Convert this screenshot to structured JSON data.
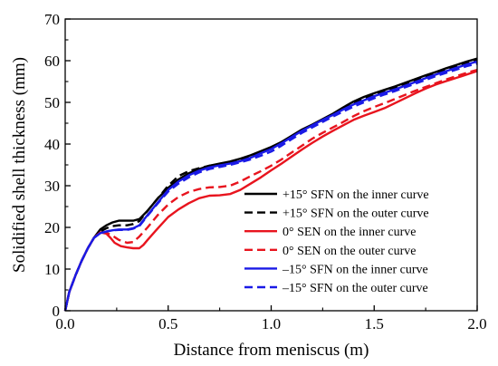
{
  "chart_data": {
    "type": "line",
    "title": "",
    "xlabel": "Distance from meniscus (m)",
    "ylabel": "Solidified shell thickness (mm)",
    "xlim": [
      0,
      2.0
    ],
    "ylim": [
      0,
      70
    ],
    "xticks": [
      "0.0",
      "0.5",
      "1.0",
      "1.5",
      "2.0"
    ],
    "yticks": [
      "0",
      "10",
      "20",
      "30",
      "40",
      "50",
      "60",
      "70"
    ],
    "grid": false,
    "legend_position": "lower-right",
    "series": [
      {
        "name": "+15° SFN on the inner curve",
        "color": "#000000",
        "dash": "solid",
        "x": [
          0,
          0.02,
          0.05,
          0.08,
          0.11,
          0.14,
          0.17,
          0.2,
          0.23,
          0.26,
          0.3,
          0.33,
          0.36,
          0.4,
          0.45,
          0.5,
          0.55,
          0.6,
          0.65,
          0.7,
          0.75,
          0.8,
          0.85,
          0.9,
          0.95,
          1.0,
          1.05,
          1.1,
          1.15,
          1.2,
          1.25,
          1.3,
          1.35,
          1.4,
          1.45,
          1.5,
          1.55,
          1.6,
          1.65,
          1.7,
          1.75,
          1.8,
          1.85,
          1.9,
          1.95,
          2.0
        ],
        "y": [
          0,
          4.5,
          8.5,
          12.0,
          15.0,
          17.5,
          19.5,
          20.5,
          21.2,
          21.6,
          21.6,
          21.6,
          22.0,
          24.0,
          27.0,
          29.5,
          31.5,
          33.0,
          34.0,
          34.8,
          35.3,
          35.8,
          36.5,
          37.3,
          38.3,
          39.3,
          40.5,
          42.0,
          43.5,
          44.7,
          46.0,
          47.3,
          48.8,
          50.2,
          51.3,
          52.2,
          53.0,
          53.8,
          54.7,
          55.6,
          56.5,
          57.3,
          58.2,
          59.0,
          59.8,
          60.5
        ]
      },
      {
        "name": "+15° SFN on the outer curve",
        "color": "#000000",
        "dash": "dashed",
        "x": [
          0,
          0.02,
          0.05,
          0.08,
          0.11,
          0.14,
          0.17,
          0.2,
          0.23,
          0.26,
          0.3,
          0.33,
          0.36,
          0.4,
          0.45,
          0.5,
          0.55,
          0.6,
          0.65,
          0.7,
          0.75,
          0.8,
          0.85,
          0.9,
          0.95,
          1.0,
          1.05,
          1.1,
          1.15,
          1.2,
          1.25,
          1.3,
          1.35,
          1.4,
          1.45,
          1.5,
          1.55,
          1.6,
          1.65,
          1.7,
          1.75,
          1.8,
          1.85,
          1.9,
          1.95,
          2.0
        ],
        "y": [
          0,
          4.5,
          8.5,
          12.0,
          15.0,
          17.5,
          19.0,
          19.8,
          20.3,
          20.5,
          20.5,
          20.8,
          21.5,
          24.0,
          27.0,
          30.0,
          32.3,
          33.5,
          34.2,
          34.8,
          35.2,
          35.6,
          36.2,
          37.0,
          38.0,
          39.0,
          40.2,
          41.8,
          43.2,
          44.5,
          45.7,
          47.0,
          48.5,
          49.8,
          50.8,
          51.7,
          52.5,
          53.3,
          54.3,
          55.2,
          56.1,
          57.0,
          57.9,
          58.7,
          59.5,
          60.3
        ]
      },
      {
        "name": "0° SEN on the inner curve",
        "color": "#e8141e",
        "dash": "solid",
        "x": [
          0,
          0.02,
          0.05,
          0.08,
          0.11,
          0.14,
          0.17,
          0.2,
          0.22,
          0.24,
          0.27,
          0.3,
          0.33,
          0.36,
          0.38,
          0.4,
          0.45,
          0.5,
          0.55,
          0.6,
          0.65,
          0.7,
          0.75,
          0.8,
          0.85,
          0.9,
          0.95,
          1.0,
          1.05,
          1.1,
          1.15,
          1.2,
          1.25,
          1.3,
          1.35,
          1.4,
          1.45,
          1.5,
          1.55,
          1.6,
          1.65,
          1.7,
          1.75,
          1.8,
          1.85,
          1.9,
          1.95,
          2.0
        ],
        "y": [
          0,
          4.5,
          8.5,
          12.0,
          15.0,
          17.5,
          18.8,
          18.5,
          17.5,
          16.3,
          15.5,
          15.2,
          15.0,
          15.0,
          15.8,
          17.0,
          19.8,
          22.5,
          24.3,
          25.8,
          27.0,
          27.6,
          27.7,
          28.0,
          29.0,
          30.5,
          32.0,
          33.7,
          35.3,
          37.0,
          38.7,
          40.3,
          41.8,
          43.2,
          44.5,
          45.8,
          46.8,
          47.7,
          48.6,
          49.8,
          51.0,
          52.2,
          53.3,
          54.3,
          55.1,
          55.9,
          56.7,
          57.5
        ]
      },
      {
        "name": "0° SEN on the outer curve",
        "color": "#e8141e",
        "dash": "dashed",
        "x": [
          0,
          0.02,
          0.05,
          0.08,
          0.11,
          0.14,
          0.17,
          0.2,
          0.23,
          0.26,
          0.3,
          0.33,
          0.36,
          0.4,
          0.45,
          0.5,
          0.55,
          0.6,
          0.65,
          0.7,
          0.75,
          0.8,
          0.85,
          0.9,
          0.95,
          1.0,
          1.05,
          1.1,
          1.15,
          1.2,
          1.25,
          1.3,
          1.35,
          1.4,
          1.45,
          1.5,
          1.55,
          1.6,
          1.65,
          1.7,
          1.75,
          1.8,
          1.85,
          1.9,
          1.95,
          2.0
        ],
        "y": [
          0,
          4.5,
          8.5,
          12.0,
          15.0,
          17.5,
          18.8,
          18.7,
          18.0,
          17.0,
          16.3,
          16.5,
          17.8,
          20.0,
          23.0,
          25.5,
          27.3,
          28.5,
          29.2,
          29.6,
          29.7,
          30.0,
          31.0,
          32.3,
          33.5,
          34.8,
          36.3,
          38.0,
          39.6,
          41.3,
          42.7,
          44.0,
          45.3,
          46.7,
          47.9,
          48.9,
          49.8,
          50.8,
          51.8,
          52.8,
          53.7,
          54.6,
          55.5,
          56.3,
          57.1,
          57.8
        ]
      },
      {
        "name": "–15° SFN on the inner curve",
        "color": "#1a1ae6",
        "dash": "solid",
        "x": [
          0,
          0.02,
          0.05,
          0.08,
          0.11,
          0.14,
          0.17,
          0.2,
          0.23,
          0.26,
          0.3,
          0.33,
          0.36,
          0.4,
          0.45,
          0.5,
          0.55,
          0.6,
          0.65,
          0.7,
          0.75,
          0.8,
          0.85,
          0.9,
          0.95,
          1.0,
          1.05,
          1.1,
          1.15,
          1.2,
          1.25,
          1.3,
          1.35,
          1.4,
          1.45,
          1.5,
          1.55,
          1.6,
          1.65,
          1.7,
          1.75,
          1.8,
          1.85,
          1.9,
          1.95,
          2.0
        ],
        "y": [
          0,
          4.5,
          8.5,
          12.0,
          15.0,
          17.5,
          18.6,
          19.0,
          19.3,
          19.5,
          19.5,
          19.8,
          20.5,
          23.0,
          26.0,
          29.0,
          31.0,
          32.5,
          33.6,
          34.4,
          34.9,
          35.3,
          35.9,
          36.7,
          37.8,
          38.8,
          40.2,
          41.7,
          43.2,
          44.5,
          45.8,
          47.0,
          48.3,
          49.5,
          50.5,
          51.5,
          52.3,
          53.1,
          54.0,
          54.9,
          55.8,
          56.7,
          57.5,
          58.3,
          59.1,
          59.8
        ]
      },
      {
        "name": "–15° SFN on the outer curve",
        "color": "#1a1ae6",
        "dash": "dashed",
        "x": [
          0,
          0.02,
          0.05,
          0.08,
          0.11,
          0.14,
          0.17,
          0.2,
          0.23,
          0.26,
          0.3,
          0.33,
          0.36,
          0.4,
          0.45,
          0.5,
          0.55,
          0.6,
          0.65,
          0.7,
          0.75,
          0.8,
          0.85,
          0.9,
          0.95,
          1.0,
          1.05,
          1.1,
          1.15,
          1.2,
          1.25,
          1.3,
          1.35,
          1.4,
          1.45,
          1.5,
          1.55,
          1.6,
          1.65,
          1.7,
          1.75,
          1.8,
          1.85,
          1.9,
          1.95,
          2.0
        ],
        "y": [
          0,
          4.5,
          8.5,
          12.0,
          15.0,
          17.5,
          18.6,
          19.0,
          19.3,
          19.4,
          19.4,
          19.7,
          20.3,
          22.8,
          25.8,
          28.6,
          30.5,
          32.0,
          33.2,
          34.0,
          34.5,
          35.0,
          35.6,
          36.3,
          37.2,
          38.2,
          39.6,
          41.2,
          42.7,
          44.0,
          45.3,
          46.6,
          47.8,
          49.0,
          50.0,
          51.0,
          51.9,
          52.7,
          53.6,
          54.5,
          55.4,
          56.3,
          57.1,
          57.9,
          58.7,
          59.3
        ]
      }
    ]
  }
}
